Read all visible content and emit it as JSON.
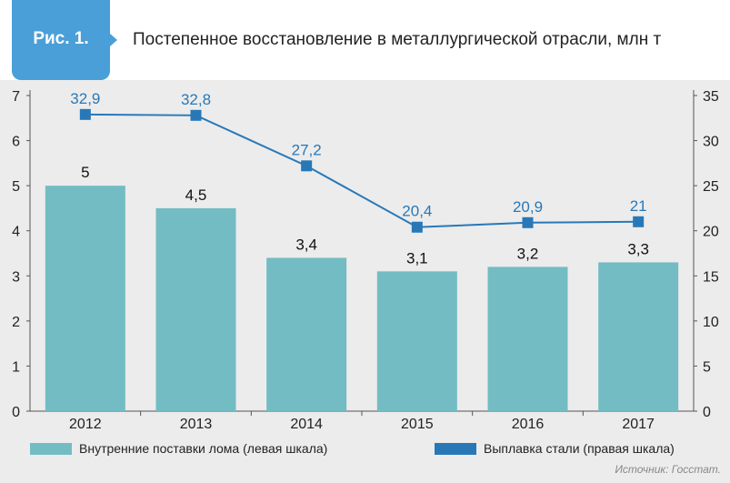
{
  "header": {
    "figure_label": "Рис. 1.",
    "title": "Постепенное восстановление в металлургической отрасли, млн т"
  },
  "colors": {
    "badge": "#4a9fd8",
    "bar": "#74bcc4",
    "line": "#2878b8",
    "background": "#ececec"
  },
  "chart_data": {
    "type": "bar",
    "categories": [
      "2012",
      "2013",
      "2014",
      "2015",
      "2016",
      "2017"
    ],
    "series": [
      {
        "name": "Внутренние поставки лома (левая шкала)",
        "type": "bar",
        "axis": "left",
        "values": [
          5,
          4.5,
          3.4,
          3.1,
          3.2,
          3.3
        ],
        "labels": [
          "5",
          "4,5",
          "3,4",
          "3,1",
          "3,2",
          "3,3"
        ]
      },
      {
        "name": "Выплавка стали (правая шкала)",
        "type": "line",
        "axis": "right",
        "values": [
          32.9,
          32.8,
          27.2,
          20.4,
          20.9,
          21
        ],
        "labels": [
          "32,9",
          "32,8",
          "27,2",
          "20,4",
          "20,9",
          "21"
        ]
      }
    ],
    "left_axis": {
      "ylim": [
        0,
        7
      ],
      "ticks": [
        "0",
        "1",
        "2",
        "3",
        "4",
        "5",
        "6",
        "7"
      ]
    },
    "right_axis": {
      "ylim": [
        0,
        35
      ],
      "ticks": [
        "0",
        "5",
        "10",
        "15",
        "20",
        "25",
        "30",
        "35"
      ]
    },
    "grid": false,
    "legend_position": "bottom"
  },
  "source": "Источник: Госстат."
}
